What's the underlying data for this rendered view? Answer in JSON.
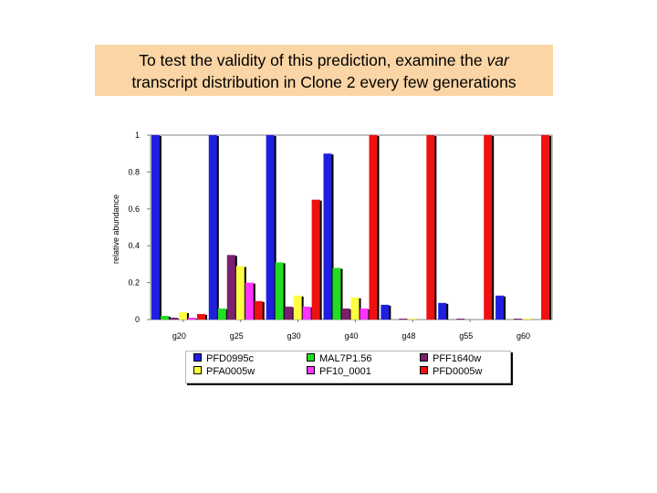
{
  "header": {
    "line1_before": "To test the validity of this prediction, examine the ",
    "line1_italic": "var",
    "line2": "transcript distribution in Clone 2 every few generations"
  },
  "chart_data": {
    "type": "bar",
    "title": "",
    "xlabel": "",
    "ylabel": "relative abundance",
    "ylim": [
      0,
      1
    ],
    "yticks": [
      "0",
      "0.2",
      "0.4",
      "0.6",
      "0.8",
      "1"
    ],
    "categories": [
      "g20",
      "g25",
      "g30",
      "g40",
      "g48",
      "g55",
      "g60"
    ],
    "grid": false,
    "legend_placement": "bottom",
    "series": [
      {
        "name": "PFD0995c",
        "color": "#1f1fe0",
        "values": [
          1.0,
          1.0,
          1.0,
          0.9,
          0.08,
          0.09,
          0.13
        ]
      },
      {
        "name": "MAL7P1.56",
        "color": "#22dd22",
        "values": [
          0.02,
          0.06,
          0.31,
          0.28,
          0.0,
          0.0,
          0.0
        ]
      },
      {
        "name": "PFF1640w",
        "color": "#7b1f6f",
        "values": [
          0.01,
          0.35,
          0.07,
          0.06,
          0.005,
          0.005,
          0.005
        ]
      },
      {
        "name": "PFA0005w",
        "color": "#ffff44",
        "values": [
          0.04,
          0.29,
          0.13,
          0.12,
          0.005,
          0.0,
          0.005
        ]
      },
      {
        "name": "PF10_0001",
        "color": "#ff33ff",
        "values": [
          0.01,
          0.2,
          0.07,
          0.06,
          0.0,
          0.0,
          0.0
        ]
      },
      {
        "name": "PFD0005w",
        "color": "#ee1111",
        "values": [
          0.03,
          0.1,
          0.65,
          1.0,
          1.0,
          1.0,
          1.0
        ]
      }
    ]
  }
}
